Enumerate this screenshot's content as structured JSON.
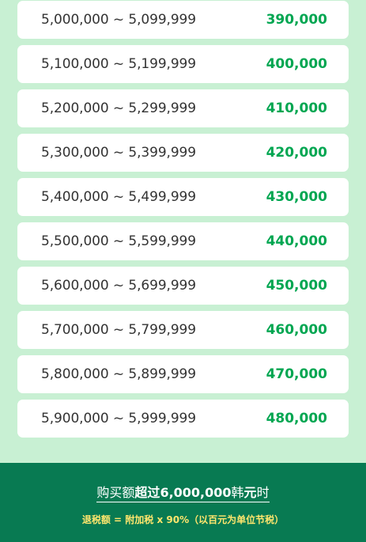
{
  "rows": [
    {
      "range": "5,000,000 ~ 5,099,999",
      "amount": "390,000"
    },
    {
      "range": "5,100,000 ~ 5,199,999",
      "amount": "400,000"
    },
    {
      "range": "5,200,000 ~ 5,299,999",
      "amount": "410,000"
    },
    {
      "range": "5,300,000 ~ 5,399,999",
      "amount": "420,000"
    },
    {
      "range": "5,400,000 ~ 5,499,999",
      "amount": "430,000"
    },
    {
      "range": "5,500,000 ~ 5,599,999",
      "amount": "440,000"
    },
    {
      "range": "5,600,000 ~ 5,699,999",
      "amount": "450,000"
    },
    {
      "range": "5,700,000 ~ 5,799,999",
      "amount": "460,000"
    },
    {
      "range": "5,800,000 ~ 5,899,999",
      "amount": "470,000"
    },
    {
      "range": "5,900,000 ~ 5,999,999",
      "amount": "480,000"
    }
  ],
  "footer": {
    "title_prefix": "购买额",
    "title_strong1": "超过",
    "title_amount": "6,000,000",
    "title_unit": "韩",
    "title_strong2": "元",
    "title_suffix": "时",
    "formula": "退税额 = 附加税 x 90%（以百元为单位节税）"
  },
  "colors": {
    "background": "#c8f0d3",
    "row_background": "#ffffff",
    "range_text": "#333333",
    "amount_text": "#00a651",
    "footer_background": "#087a52",
    "footer_formula": "#ffe66d"
  }
}
